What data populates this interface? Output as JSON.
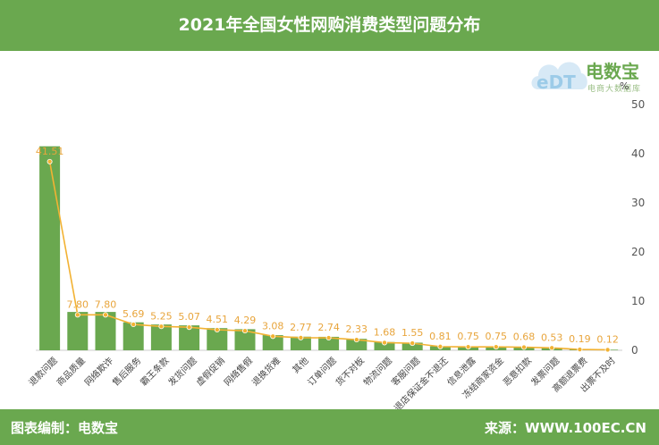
{
  "header": {
    "title": "2021年全国女性网购消费类型问题分布"
  },
  "footer": {
    "left": "图表编制：电数宝",
    "right": "来源：WWW.100EC.CN"
  },
  "logo": {
    "name": "电数宝",
    "sub": "电商大数据库",
    "mark": "eDT"
  },
  "chart_data": {
    "type": "bar",
    "unit": "%",
    "ylim": [
      0,
      50
    ],
    "yticks": [
      0,
      10,
      20,
      30,
      40,
      50
    ],
    "categories": [
      "退款问题",
      "商品质量",
      "网络欺诈",
      "售后服务",
      "霸王条款",
      "发货问题",
      "虚假促销",
      "网络售假",
      "退换货难",
      "其他",
      "订单问题",
      "货不对板",
      "物流问题",
      "客服问题",
      "退店保证金不退还",
      "信息泄露",
      "冻结商家资金",
      "恶意扣款",
      "发票问题",
      "高额退票费",
      "出票不及时"
    ],
    "values": [
      41.51,
      7.8,
      7.8,
      5.69,
      5.25,
      5.07,
      4.51,
      4.29,
      3.08,
      2.77,
      2.74,
      2.33,
      1.68,
      1.55,
      0.81,
      0.75,
      0.75,
      0.68,
      0.53,
      0.19,
      0.12
    ],
    "value_labels": [
      "41.51",
      "7.80",
      "7.80",
      "5.69",
      "5.25",
      "5.07",
      "4.51",
      "4.29",
      "3.08",
      "2.77",
      "2.74",
      "2.33",
      "1.68",
      "1.55",
      "0.81",
      "0.75",
      "0.75",
      "0.68",
      "0.53",
      "0.19",
      "0.12"
    ],
    "grid": false,
    "colors": {
      "bar": "#6aa84f",
      "line": "#f2b233",
      "label": "#e8a53c"
    }
  }
}
